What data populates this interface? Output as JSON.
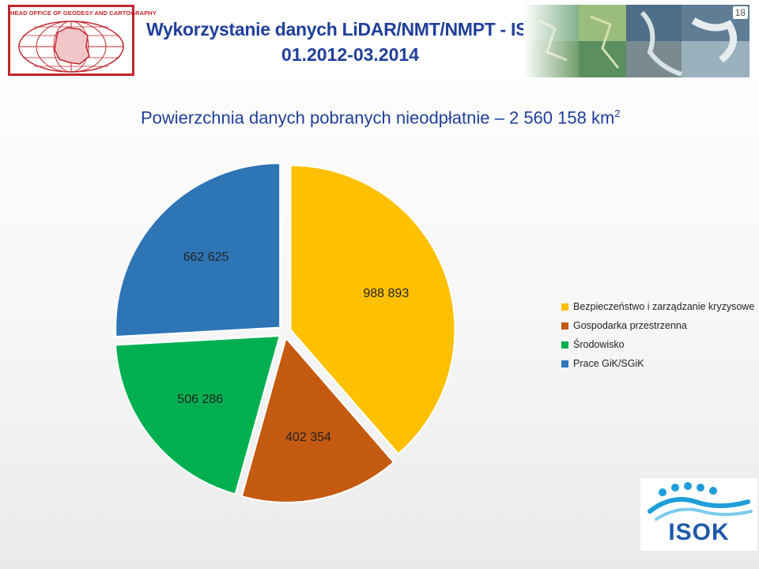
{
  "header": {
    "logo_text": "HEAD OFFICE OF GEODESY AND CARTOGRAPHY",
    "title": "Wykorzystanie danych LiDAR/NMT/NMPT - ISOK",
    "date": "01.2012-03.2014",
    "slide_number": "18"
  },
  "slide_title": {
    "main": "Powierzchnia danych pobranych nieodpłatnie – 2 560 158 km",
    "superscript": "2"
  },
  "isok_logo": {
    "text": "ISOK"
  },
  "chart_data": {
    "type": "pie",
    "categories": [
      "Bezpieczeństwo i zarządzanie kryzysowe",
      "Gospodarka przestrzenna",
      "Środowisko",
      "Prace GiK/SGiK"
    ],
    "values": [
      988893,
      402354,
      506286,
      662625
    ],
    "data_labels": [
      "988 893",
      "402 354",
      "506 286",
      "662 625"
    ],
    "colors": [
      "#FFC000",
      "#C55A11",
      "#00B050",
      "#2E75B6"
    ],
    "legend_position": "right",
    "exploded": true,
    "start_angle_deg": 0,
    "direction": "clockwise"
  }
}
